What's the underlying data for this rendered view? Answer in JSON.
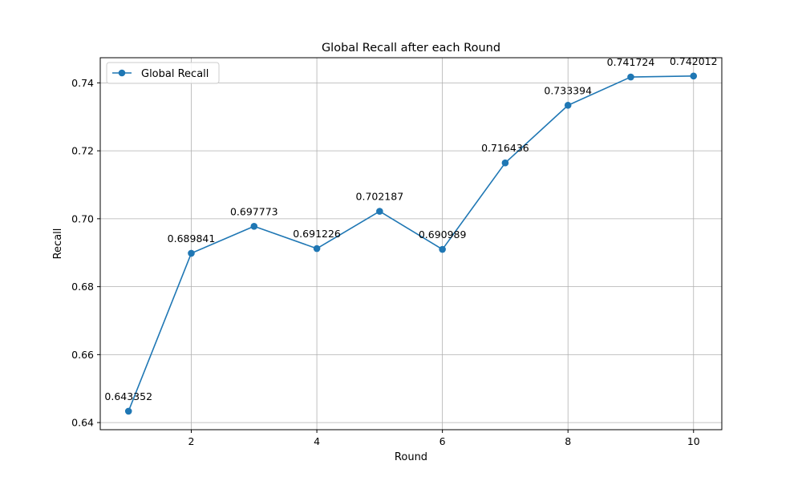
{
  "chart_data": {
    "type": "line",
    "title": "Global Recall after each Round",
    "xlabel": "Round",
    "ylabel": "Recall",
    "xlim": [
      0.55,
      10.45
    ],
    "ylim": [
      0.6379,
      0.7474
    ],
    "xticks": [
      2,
      4,
      6,
      8,
      10
    ],
    "yticks": [
      0.64,
      0.66,
      0.68,
      0.7,
      0.72,
      0.74
    ],
    "ytick_labels": [
      "0.64",
      "0.66",
      "0.68",
      "0.70",
      "0.72",
      "0.74"
    ],
    "grid": true,
    "legend_position": "upper-left",
    "series": [
      {
        "name": "Global Recall",
        "color": "#1f77b4",
        "marker": "circle",
        "x": [
          1,
          2,
          3,
          4,
          5,
          6,
          7,
          8,
          9,
          10
        ],
        "values": [
          0.643352,
          0.689841,
          0.697773,
          0.691226,
          0.702187,
          0.690989,
          0.716436,
          0.733394,
          0.741724,
          0.742012
        ],
        "point_labels": [
          "0.643352",
          "0.689841",
          "0.697773",
          "0.691226",
          "0.702187",
          "0.690989",
          "0.716436",
          "0.733394",
          "0.741724",
          "0.742012"
        ]
      }
    ]
  }
}
